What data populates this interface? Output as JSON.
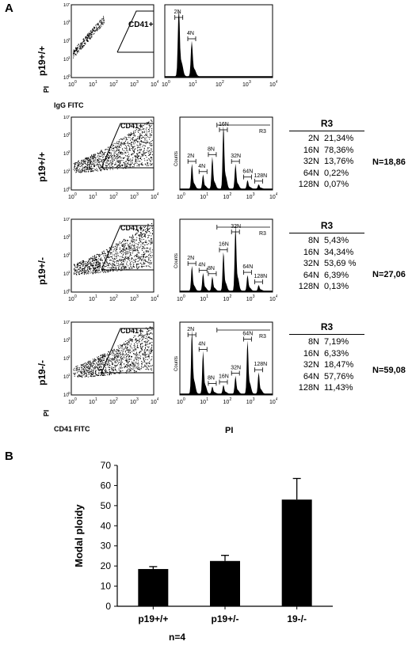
{
  "panel_a": {
    "letter": "A",
    "rows": [
      {
        "label": "p19+/+",
        "gate_label": "CD41+",
        "peaks": [
          "2N",
          "4N"
        ],
        "r3": null,
        "n": null
      },
      {
        "label": "p19+/+",
        "gate_label": "CD41+",
        "peaks": [
          "2N",
          "4N",
          "8N",
          "16N",
          "32N",
          "64N",
          "128N"
        ],
        "region": "R3",
        "y_axis": "Counts",
        "r3": {
          "title": "R3",
          "entries": [
            {
              "k": "2N",
              "v": "21,34%"
            },
            {
              "k": "16N",
              "v": "78,36%"
            },
            {
              "k": "32N",
              "v": "13,76%"
            },
            {
              "k": "64N",
              "v": "0,22%"
            },
            {
              "k": "128N",
              "v": "0,07%"
            }
          ]
        },
        "n": "N=18,86"
      },
      {
        "label": "p19+/-",
        "gate_label": "CD41+",
        "peaks": [
          "2N",
          "4N",
          "8N",
          "16N",
          "32N",
          "64N",
          "128N"
        ],
        "region": "R3",
        "y_axis": "Counts",
        "r3": {
          "title": "R3",
          "entries": [
            {
              "k": "8N",
              "v": "5,43%"
            },
            {
              "k": "16N",
              "v": "34,34%"
            },
            {
              "k": "32N",
              "v": "53,69 %"
            },
            {
              "k": "64N",
              "v": "6,39%"
            },
            {
              "k": "128N",
              "v": "0,13%"
            }
          ]
        },
        "n": "N=27,06"
      },
      {
        "label": "p19-/-",
        "gate_label": "CD41+",
        "peaks": [
          "2N",
          "4N",
          "8N",
          "16N",
          "32N",
          "64N",
          "128N"
        ],
        "region": "R3",
        "y_axis": "Counts",
        "r3": {
          "title": "R3",
          "entries": [
            {
              "k": "8N",
              "v": "7,19%"
            },
            {
              "k": "16N",
              "v": "6,33%"
            },
            {
              "k": "32N",
              "v": "18,47%"
            },
            {
              "k": "64N",
              "v": "57,76%"
            },
            {
              "k": "128N",
              "v": "11,43%"
            }
          ]
        },
        "n": "N=59,08"
      }
    ],
    "top_x_label": "IgG FITC",
    "top_y_label": "PI",
    "bottom_x_label": "CD41 FITC",
    "bottom_y_label": "PI",
    "hist_x_label": "PI",
    "tick_labels": [
      "10",
      "10",
      "10",
      "10",
      "10"
    ],
    "tick_exp": [
      "0",
      "1",
      "2",
      "3",
      "4"
    ]
  },
  "panel_b": {
    "letter": "B",
    "footnote": "n=4",
    "chart_data": {
      "type": "bar",
      "categories": [
        "p19+/+",
        "p19+/-",
        "19-/-"
      ],
      "values": [
        18.5,
        22.5,
        53
      ],
      "errors": [
        1.2,
        2.8,
        10.5
      ],
      "ylabel": "Modal ploidy",
      "ylim": [
        0,
        70
      ],
      "yticks": [
        0,
        10,
        20,
        30,
        40,
        50,
        60,
        70
      ],
      "bar_color": "#000000",
      "grid": false
    }
  }
}
